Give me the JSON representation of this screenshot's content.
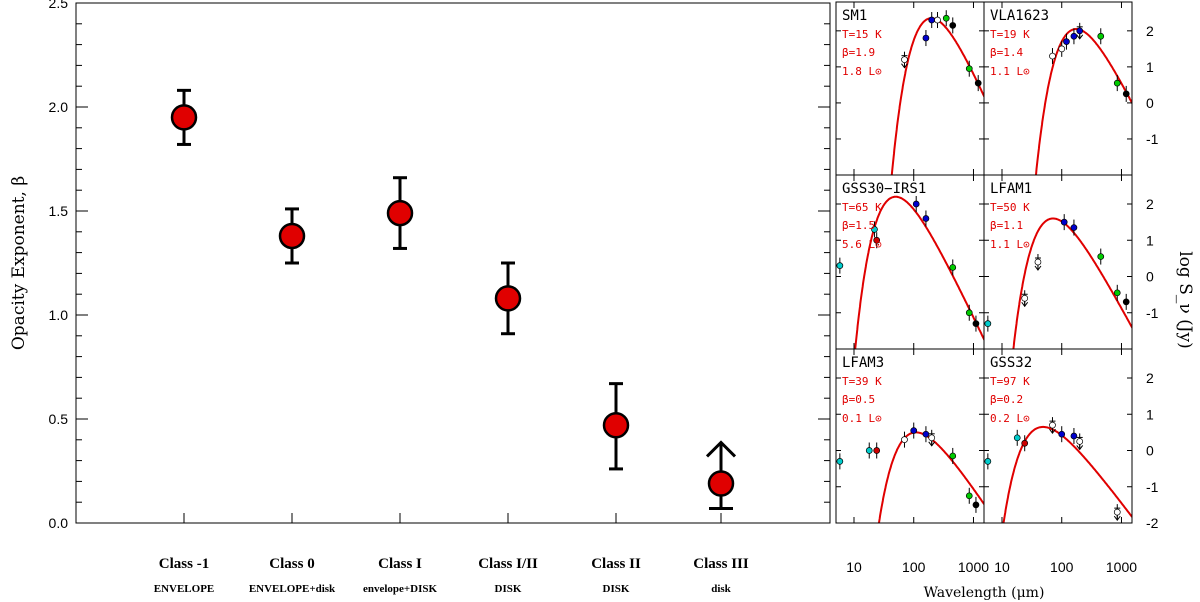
{
  "chart_data": [
    {
      "type": "scatter",
      "title": "",
      "ylabel": "Opacity Exponent,  β",
      "xlabel": "",
      "ylim": [
        0.0,
        2.5
      ],
      "yticks": [
        "0.0",
        "0.5",
        "1.0",
        "1.5",
        "2.0",
        "2.5"
      ],
      "grid": false,
      "marker_color": "#e00000",
      "categories": [
        {
          "label": "Class -1",
          "sub": "ENVELOPE"
        },
        {
          "label": "Class 0",
          "sub": "ENVELOPE+disk"
        },
        {
          "label": "Class I",
          "sub": "envelope+DISK"
        },
        {
          "label": "Class I/II",
          "sub": "DISK"
        },
        {
          "label": "Class II",
          "sub": "DISK"
        },
        {
          "label": "Class III",
          "sub": "disk"
        }
      ],
      "points": [
        {
          "category": "Class -1",
          "beta": 1.95,
          "err_low": 0.13,
          "err_high": 0.13
        },
        {
          "category": "Class 0",
          "beta": 1.38,
          "err_low": 0.13,
          "err_high": 0.13
        },
        {
          "category": "Class I",
          "beta": 1.49,
          "err_low": 0.17,
          "err_high": 0.17
        },
        {
          "category": "Class I/II",
          "beta": 1.08,
          "err_low": 0.17,
          "err_high": 0.17
        },
        {
          "category": "Class II",
          "beta": 0.47,
          "err_low": 0.21,
          "err_high": 0.2
        },
        {
          "category": "Class III",
          "beta": 0.19,
          "err_low": 0.12,
          "err_high": 0.0,
          "lower_limit": true
        }
      ]
    },
    {
      "type": "line",
      "xlabel": "Wavelength (μm)",
      "ylabel": "log S_ν  (Jy)",
      "x_scale": "log",
      "xlim": [
        5,
        1500
      ],
      "xticks": [
        "10",
        "100",
        "1000"
      ],
      "ylim": [
        -2,
        3
      ],
      "yticks": [
        "2",
        "1",
        "0",
        "-1",
        "-2"
      ],
      "curve_color": "#e00000",
      "panels": [
        {
          "name": "SM1",
          "T": "T=15 K",
          "beta": "β=1.9",
          "L": "1.8 L⊙",
          "curve": {
            "peak_wavelength": 180,
            "peak": 2.35,
            "T_K": 15,
            "beta": 1.9
          },
          "points": [
            {
              "x": 70,
              "y": 1.2,
              "color": "#ffffff",
              "upper_limit": true
            },
            {
              "x": 160,
              "y": 1.8,
              "color": "#0000cc"
            },
            {
              "x": 200,
              "y": 2.3,
              "color": "#0000cc"
            },
            {
              "x": 250,
              "y": 2.3,
              "color": "#ffffff"
            },
            {
              "x": 350,
              "y": 2.35,
              "color": "#00cc00"
            },
            {
              "x": 450,
              "y": 2.15,
              "color": "#000000"
            },
            {
              "x": 850,
              "y": 0.95,
              "color": "#00cc00"
            },
            {
              "x": 1200,
              "y": 0.55,
              "color": "#000000"
            }
          ]
        },
        {
          "name": "VLA1623",
          "T": "T=19 K",
          "beta": "β=1.4",
          "L": "1.1 L⊙",
          "curve": {
            "peak_wavelength": 180,
            "peak": 2.05,
            "T_K": 19,
            "beta": 1.4
          },
          "points": [
            {
              "x": 70,
              "y": 1.3,
              "color": "#ffffff"
            },
            {
              "x": 100,
              "y": 1.5,
              "color": "#ffffff"
            },
            {
              "x": 120,
              "y": 1.7,
              "color": "#0000cc"
            },
            {
              "x": 160,
              "y": 1.85,
              "color": "#0000cc"
            },
            {
              "x": 200,
              "y": 2.0,
              "color": "#0000cc",
              "upper_limit": true
            },
            {
              "x": 450,
              "y": 1.85,
              "color": "#00cc00"
            },
            {
              "x": 850,
              "y": 0.55,
              "color": "#00cc00"
            },
            {
              "x": 1200,
              "y": 0.25,
              "color": "#000000"
            }
          ]
        },
        {
          "name": "GSS30−IRS1",
          "T": "T=65 K",
          "beta": "β=1.5",
          "L": "5.6 L⊙",
          "curve": {
            "peak_wavelength": 70,
            "peak": 2.2,
            "T_K": 65,
            "beta": 1.5
          },
          "points": [
            {
              "x": 5.8,
              "y": 0.3,
              "color": "#00cccc"
            },
            {
              "x": 22,
              "y": 1.3,
              "color": "#00cccc"
            },
            {
              "x": 24,
              "y": 1.0,
              "color": "#cc0000"
            },
            {
              "x": 110,
              "y": 2.0,
              "color": "#0000cc"
            },
            {
              "x": 160,
              "y": 1.6,
              "color": "#0000cc"
            },
            {
              "x": 450,
              "y": 0.25,
              "color": "#00cc00"
            },
            {
              "x": 850,
              "y": -1.0,
              "color": "#00cc00"
            },
            {
              "x": 1100,
              "y": -1.3,
              "color": "#000000"
            }
          ]
        },
        {
          "name": "LFAM1",
          "T": "T=50 K",
          "beta": "β=1.1",
          "L": "1.1 L⊙",
          "curve": {
            "peak_wavelength": 110,
            "peak": 1.6,
            "T_K": 50,
            "beta": 1.1
          },
          "points": [
            {
              "x": 5.8,
              "y": -1.3,
              "color": "#00cccc"
            },
            {
              "x": 24,
              "y": -0.6,
              "color": "#ffffff",
              "upper_limit": true
            },
            {
              "x": 40,
              "y": 0.4,
              "color": "#ffffff",
              "upper_limit": true
            },
            {
              "x": 110,
              "y": 1.5,
              "color": "#0000cc"
            },
            {
              "x": 160,
              "y": 1.35,
              "color": "#0000cc"
            },
            {
              "x": 450,
              "y": 0.55,
              "color": "#00cc00"
            },
            {
              "x": 850,
              "y": -0.45,
              "color": "#00cc00"
            },
            {
              "x": 1200,
              "y": -0.7,
              "color": "#000000"
            }
          ]
        },
        {
          "name": "LFAM3",
          "T": "T=39 K",
          "beta": "β=0.5",
          "L": "0.1 L⊙",
          "curve": {
            "peak_wavelength": 160,
            "peak": 0.5,
            "T_K": 39,
            "beta": 0.5
          },
          "points": [
            {
              "x": 5.8,
              "y": -0.3,
              "color": "#00cccc"
            },
            {
              "x": 18,
              "y": 0.0,
              "color": "#00cccc"
            },
            {
              "x": 24,
              "y": 0.0,
              "color": "#cc0000"
            },
            {
              "x": 70,
              "y": 0.3,
              "color": "#ffffff"
            },
            {
              "x": 100,
              "y": 0.55,
              "color": "#0000cc"
            },
            {
              "x": 160,
              "y": 0.45,
              "color": "#0000cc"
            },
            {
              "x": 200,
              "y": 0.35,
              "color": "#ffffff",
              "upper_limit": true
            },
            {
              "x": 450,
              "y": -0.15,
              "color": "#00cc00"
            },
            {
              "x": 850,
              "y": -1.25,
              "color": "#00cc00"
            },
            {
              "x": 1100,
              "y": -1.5,
              "color": "#000000"
            }
          ]
        },
        {
          "name": "GSS32",
          "T": "T=97 K",
          "beta": "β=0.2",
          "L": "0.2 L⊙",
          "curve": {
            "peak_wavelength": 50,
            "peak": 0.65,
            "T_K": 97,
            "beta": 0.2
          },
          "points": [
            {
              "x": 5.8,
              "y": -0.3,
              "color": "#00cccc"
            },
            {
              "x": 18,
              "y": 0.35,
              "color": "#00cccc"
            },
            {
              "x": 24,
              "y": 0.2,
              "color": "#cc0000"
            },
            {
              "x": 70,
              "y": 0.7,
              "color": "#ffffff",
              "upper_limit": true
            },
            {
              "x": 100,
              "y": 0.45,
              "color": "#0000cc"
            },
            {
              "x": 160,
              "y": 0.4,
              "color": "#0000cc"
            },
            {
              "x": 200,
              "y": 0.25,
              "color": "#ffffff",
              "upper_limit": true
            },
            {
              "x": 850,
              "y": -1.7,
              "color": "#ffffff",
              "upper_limit": true
            }
          ]
        }
      ]
    }
  ]
}
